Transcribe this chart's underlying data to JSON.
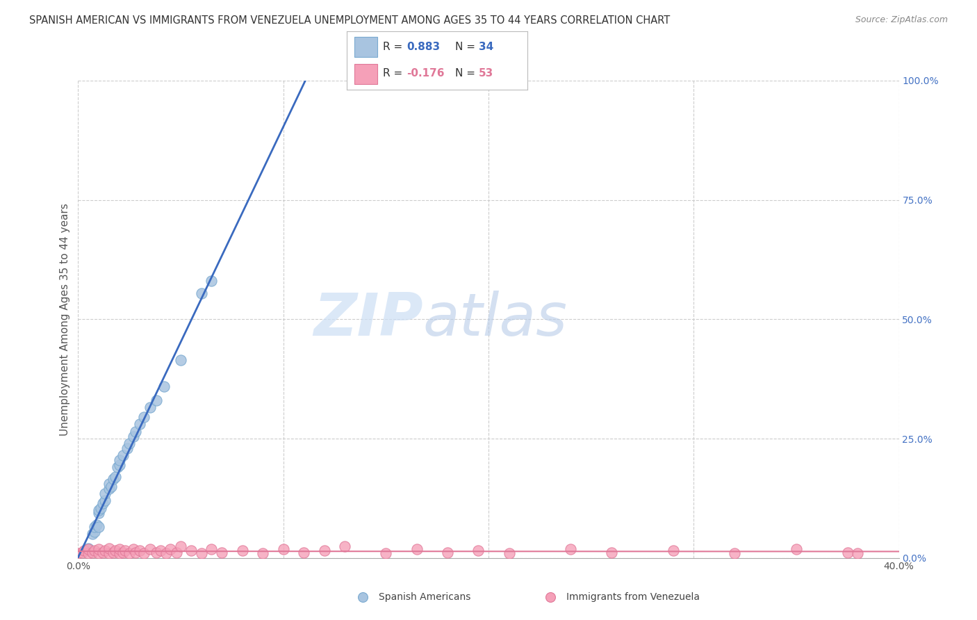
{
  "title": "SPANISH AMERICAN VS IMMIGRANTS FROM VENEZUELA UNEMPLOYMENT AMONG AGES 35 TO 44 YEARS CORRELATION CHART",
  "source": "Source: ZipAtlas.com",
  "ylabel": "Unemployment Among Ages 35 to 44 years",
  "xlim": [
    0.0,
    0.4
  ],
  "ylim": [
    0.0,
    1.0
  ],
  "xticks": [
    0.0,
    0.4
  ],
  "xtick_labels": [
    "0.0%",
    "40.0%"
  ],
  "yticks": [
    0.0,
    0.25,
    0.5,
    0.75,
    1.0
  ],
  "ytick_labels": [
    "0.0%",
    "25.0%",
    "50.0%",
    "75.0%",
    "100.0%"
  ],
  "blue_color": "#a8c4e0",
  "blue_edge_color": "#7aaad0",
  "blue_line_color": "#3a6abf",
  "pink_color": "#f5a0b8",
  "pink_edge_color": "#e07898",
  "pink_line_color": "#e07898",
  "legend_R_blue": "R =  0.883",
  "legend_N_blue": "N = 34",
  "legend_R_pink": "R = -0.176",
  "legend_N_pink": "N = 53",
  "watermark_zip": "ZIP",
  "watermark_atlas": "atlas",
  "blue_scatter_x": [
    0.005,
    0.005,
    0.007,
    0.008,
    0.008,
    0.009,
    0.01,
    0.01,
    0.01,
    0.011,
    0.012,
    0.013,
    0.013,
    0.015,
    0.015,
    0.016,
    0.017,
    0.018,
    0.019,
    0.02,
    0.02,
    0.022,
    0.024,
    0.025,
    0.027,
    0.028,
    0.03,
    0.032,
    0.035,
    0.038,
    0.042,
    0.05,
    0.06,
    0.065
  ],
  "blue_scatter_y": [
    0.015,
    0.02,
    0.05,
    0.055,
    0.065,
    0.07,
    0.065,
    0.095,
    0.1,
    0.105,
    0.115,
    0.12,
    0.135,
    0.145,
    0.155,
    0.15,
    0.165,
    0.17,
    0.19,
    0.195,
    0.205,
    0.215,
    0.23,
    0.24,
    0.255,
    0.265,
    0.28,
    0.295,
    0.315,
    0.33,
    0.36,
    0.415,
    0.555,
    0.58
  ],
  "pink_scatter_x": [
    0.0,
    0.002,
    0.003,
    0.005,
    0.005,
    0.007,
    0.008,
    0.01,
    0.01,
    0.012,
    0.013,
    0.015,
    0.015,
    0.017,
    0.018,
    0.02,
    0.02,
    0.022,
    0.023,
    0.025,
    0.027,
    0.028,
    0.03,
    0.032,
    0.035,
    0.038,
    0.04,
    0.043,
    0.045,
    0.048,
    0.05,
    0.055,
    0.06,
    0.065,
    0.07,
    0.08,
    0.09,
    0.1,
    0.11,
    0.12,
    0.13,
    0.15,
    0.165,
    0.18,
    0.195,
    0.21,
    0.24,
    0.26,
    0.29,
    0.32,
    0.35,
    0.375,
    0.38
  ],
  "pink_scatter_y": [
    0.01,
    0.012,
    0.015,
    0.01,
    0.018,
    0.012,
    0.015,
    0.01,
    0.018,
    0.012,
    0.015,
    0.01,
    0.02,
    0.012,
    0.015,
    0.01,
    0.018,
    0.012,
    0.015,
    0.01,
    0.018,
    0.012,
    0.015,
    0.01,
    0.018,
    0.012,
    0.015,
    0.01,
    0.018,
    0.012,
    0.025,
    0.015,
    0.01,
    0.018,
    0.012,
    0.015,
    0.01,
    0.018,
    0.012,
    0.015,
    0.025,
    0.01,
    0.018,
    0.012,
    0.015,
    0.01,
    0.018,
    0.012,
    0.015,
    0.01,
    0.018,
    0.012,
    0.01
  ],
  "background_color": "#ffffff",
  "grid_color": "#cccccc",
  "grid_style": "--",
  "ytick_color": "#4472c4"
}
